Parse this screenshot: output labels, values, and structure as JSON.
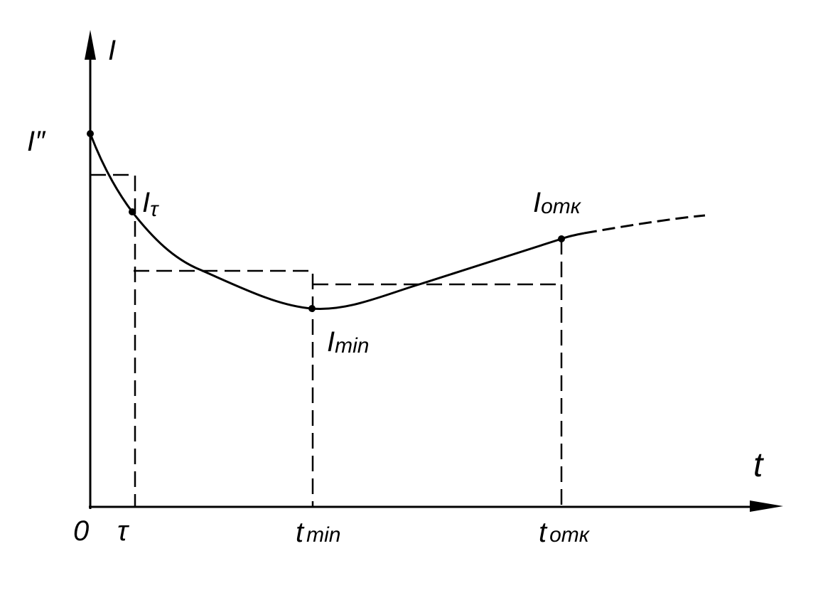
{
  "axes": {
    "y_label": "I",
    "x_label": "t",
    "origin": "0"
  },
  "curve_points": [
    {
      "label": "I″"
    },
    {
      "label": "I",
      "sub": "τ"
    },
    {
      "label": "I",
      "sub": "min"
    },
    {
      "label": "I",
      "sub": "отк"
    }
  ],
  "x_markers": [
    {
      "label": "τ"
    },
    {
      "label": "t",
      "sub": "min"
    },
    {
      "label": "t",
      "sub": "отк"
    }
  ]
}
